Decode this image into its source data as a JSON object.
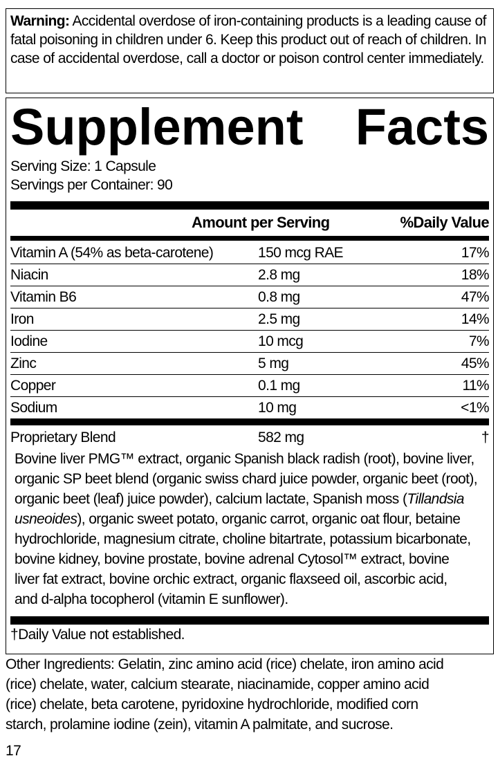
{
  "warning": {
    "label": "Warning:",
    "text": " Accidental overdose of iron-containing products is a leading cause of fatal poisoning in children under 6. Keep this product out of reach of children. In case of accidental overdose, call a doctor or poison control center immediately."
  },
  "title": {
    "word1": "Supplement",
    "word2": "Facts"
  },
  "serving_size": "Serving Size: 1 Capsule",
  "servings_per_container": "Servings per Container: 90",
  "header": {
    "amount": "Amount per Serving",
    "dv": "%Daily Value"
  },
  "rows": [
    {
      "name": "Vitamin A (54% as beta-carotene)",
      "amount": "150 mcg RAE",
      "dv": "17%"
    },
    {
      "name": "Niacin",
      "amount": "2.8 mg",
      "dv": "18%"
    },
    {
      "name": "Vitamin B6",
      "amount": "0.8 mg",
      "dv": "47%"
    },
    {
      "name": "Iron",
      "amount": "2.5 mg",
      "dv": "14%"
    },
    {
      "name": "Iodine",
      "amount": "10 mcg",
      "dv": "7%"
    },
    {
      "name": "Zinc",
      "amount": "5 mg",
      "dv": "45%"
    },
    {
      "name": "Copper",
      "amount": "0.1 mg",
      "dv": "11%"
    },
    {
      "name": "Sodium",
      "amount": "10 mg",
      "dv": "<1%"
    }
  ],
  "blend": {
    "name": "Proprietary Blend",
    "amount": "582 mg",
    "dv": "†",
    "lines": [
      "Bovine liver PMG™ extract, organic Spanish black radish (root), bovine liver,",
      "organic SP beet blend (organic swiss chard juice powder, organic beet (root),",
      "organic beet (leaf) juice powder), calcium lactate, Spanish moss (",
      "Tillandsia",
      "usneoides",
      "), organic sweet potato, organic carrot, organic oat flour, betaine",
      "hydrochloride, magnesium citrate, choline bitartrate, potassium bicarbonate,",
      "bovine kidney, bovine prostate, bovine adrenal Cytosol™ extract, bovine",
      "liver fat extract, bovine orchic extract, organic flaxseed oil, ascorbic acid,",
      "and d-alpha tocopherol (vitamin E sunflower)."
    ]
  },
  "footnote": "†Daily Value not established.",
  "other_lines": [
    "Other Ingredients: Gelatin, zinc amino acid (rice) chelate, iron amino acid",
    "(rice) chelate, water, calcium stearate, niacinamide, copper amino acid",
    "(rice) chelate, beta carotene, pyridoxine hydrochloride, modified corn",
    "starch, prolamine iodine (zein), vitamin A palmitate, and sucrose."
  ],
  "page_number": "17"
}
